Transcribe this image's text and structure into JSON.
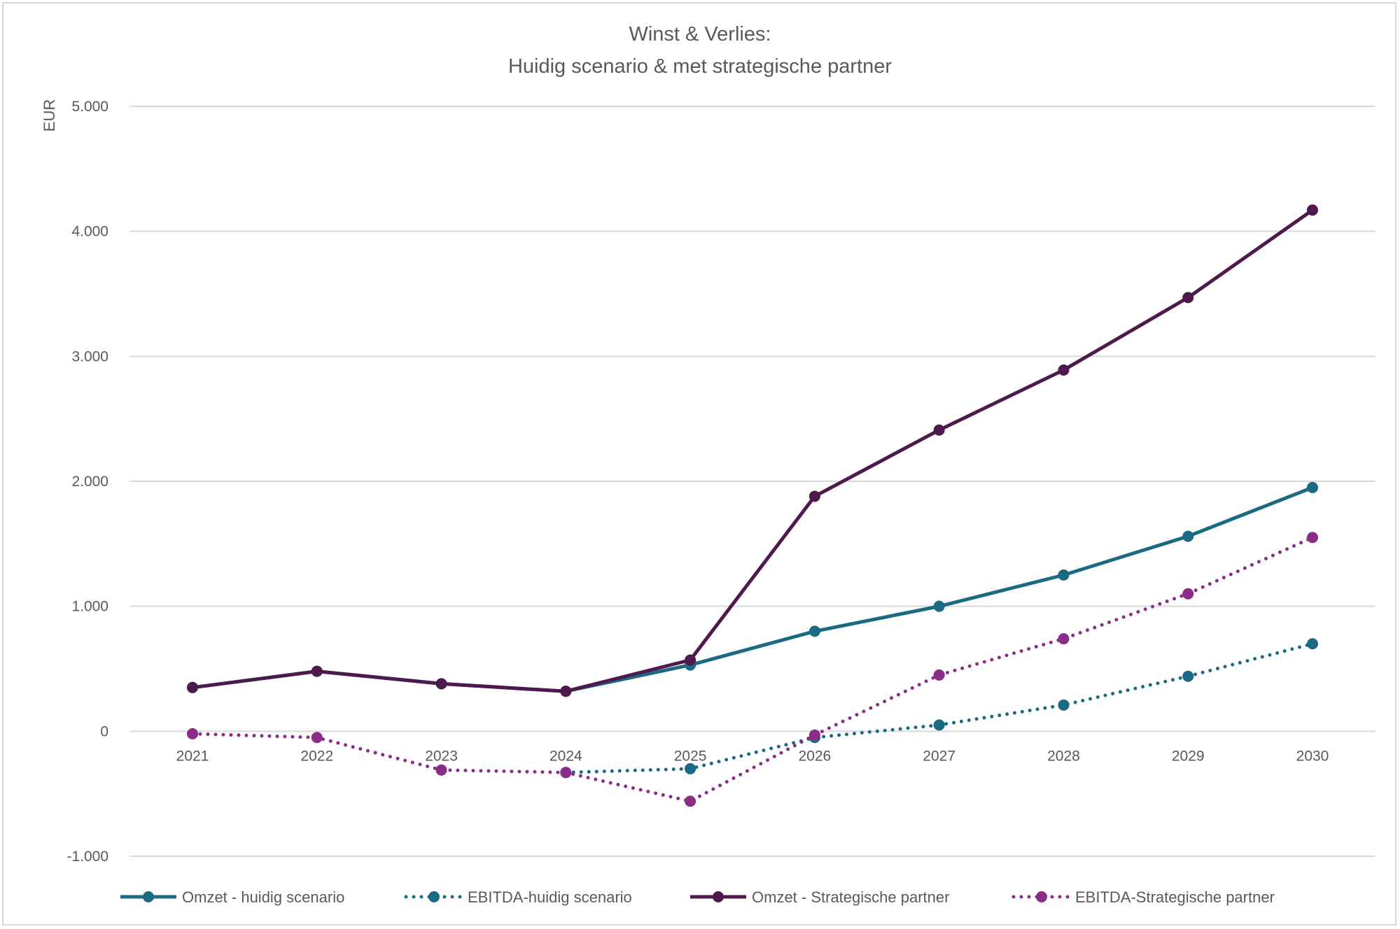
{
  "chart_data": {
    "type": "line",
    "title_line1": "Winst & Verlies:",
    "title_line2": "Huidig scenario & met strategische partner",
    "xlabel": "",
    "ylabel": "EUR",
    "ylim": [
      -1000,
      5000
    ],
    "yticks": [
      -1000,
      0,
      1000,
      2000,
      3000,
      4000,
      5000
    ],
    "ytick_labels": [
      "-1.000",
      "0",
      "1.000",
      "2.000",
      "3.000",
      "4.000",
      "5.000"
    ],
    "categories": [
      "2021",
      "2022",
      "2023",
      "2024",
      "2025",
      "2026",
      "2027",
      "2028",
      "2029",
      "2030"
    ],
    "grid": true,
    "legend_position": "bottom",
    "series": [
      {
        "name": "Omzet - huidig scenario",
        "color": "#1b6a84",
        "style": "solid",
        "values": [
          350,
          480,
          380,
          320,
          530,
          800,
          1000,
          1250,
          1560,
          1950
        ]
      },
      {
        "name": "EBITDA-huidig scenario",
        "color": "#1b6a84",
        "style": "dotted",
        "values": [
          null,
          null,
          null,
          -330,
          -300,
          -50,
          50,
          210,
          440,
          700
        ]
      },
      {
        "name": "Omzet - Strategische partner",
        "color": "#4e1a4e",
        "style": "solid",
        "values": [
          350,
          480,
          380,
          320,
          570,
          1880,
          2410,
          2890,
          3470,
          4170
        ]
      },
      {
        "name": "EBITDA-Strategische partner",
        "color": "#8a2d86",
        "style": "dotted",
        "values": [
          -20,
          -50,
          -310,
          -330,
          -560,
          -30,
          450,
          740,
          1100,
          1550
        ]
      }
    ]
  }
}
